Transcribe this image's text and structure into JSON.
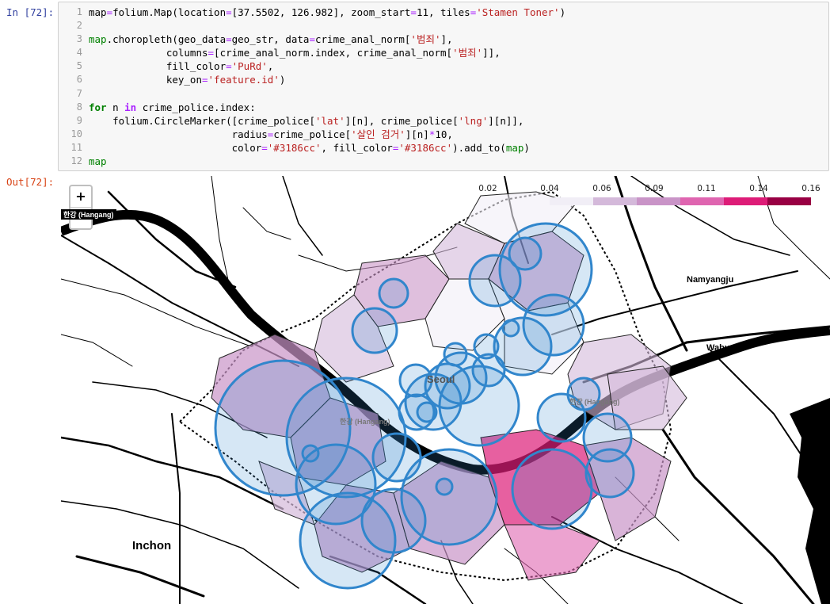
{
  "input_prompt": "In [72]:",
  "output_prompt": "Out[72]:",
  "code_lines": [
    {
      "n": "1",
      "segs": [
        [
          "map",
          ""
        ],
        [
          "=",
          "eq"
        ],
        [
          "folium.Map(location",
          ""
        ],
        [
          "=",
          "eq"
        ],
        [
          "[37.5502, 126.982], zoom_start",
          ""
        ],
        [
          "=",
          "eq"
        ],
        [
          "11, tiles",
          ""
        ],
        [
          "=",
          "eq"
        ],
        [
          "'Stamen Toner'",
          "st"
        ],
        [
          ")",
          ""
        ]
      ]
    },
    {
      "n": "2",
      "segs": []
    },
    {
      "n": "3",
      "segs": [
        [
          "map",
          "nm"
        ],
        [
          ".choropleth(geo_data",
          ""
        ],
        [
          "=",
          "eq"
        ],
        [
          "geo_str, data",
          ""
        ],
        [
          "=",
          "eq"
        ],
        [
          "crime_anal_norm[",
          ""
        ],
        [
          "'범죄'",
          "st"
        ],
        [
          "],",
          ""
        ]
      ]
    },
    {
      "n": "4",
      "segs": [
        [
          "             columns",
          ""
        ],
        [
          "=",
          "eq"
        ],
        [
          "[crime_anal_norm.index, crime_anal_norm[",
          ""
        ],
        [
          "'범죄'",
          "st"
        ],
        [
          "]],",
          ""
        ]
      ]
    },
    {
      "n": "5",
      "segs": [
        [
          "             fill_color",
          ""
        ],
        [
          "=",
          "eq"
        ],
        [
          "'PuRd'",
          "st"
        ],
        [
          ",",
          ""
        ]
      ]
    },
    {
      "n": "6",
      "segs": [
        [
          "             key_on",
          ""
        ],
        [
          "=",
          "eq"
        ],
        [
          "'feature.id'",
          "st"
        ],
        [
          ")",
          ""
        ]
      ]
    },
    {
      "n": "7",
      "segs": []
    },
    {
      "n": "8",
      "segs": [
        [
          "for",
          "kw"
        ],
        [
          " n ",
          ""
        ],
        [
          "in",
          "op"
        ],
        [
          " crime_police.index:",
          ""
        ]
      ]
    },
    {
      "n": "9",
      "segs": [
        [
          "    folium.CircleMarker([crime_police[",
          ""
        ],
        [
          "'lat'",
          "st"
        ],
        [
          "][n], crime_police[",
          ""
        ],
        [
          "'lng'",
          "st"
        ],
        [
          "][n]],",
          ""
        ]
      ]
    },
    {
      "n": "10",
      "segs": [
        [
          "                        radius",
          ""
        ],
        [
          "=",
          "eq"
        ],
        [
          "crime_police[",
          ""
        ],
        [
          "'살인 검거'",
          "st"
        ],
        [
          "][n]",
          ""
        ],
        [
          "*",
          "eq"
        ],
        [
          "10,",
          ""
        ]
      ]
    },
    {
      "n": "11",
      "segs": [
        [
          "                        color",
          ""
        ],
        [
          "=",
          "eq"
        ],
        [
          "'#3186cc'",
          "st"
        ],
        [
          ", fill_color",
          ""
        ],
        [
          "=",
          "eq"
        ],
        [
          "'#3186cc'",
          "st"
        ],
        [
          ").add_to(",
          ""
        ],
        [
          "map",
          "nm"
        ],
        [
          ")",
          ""
        ]
      ]
    },
    {
      "n": "12",
      "segs": [
        [
          "map",
          "nm"
        ]
      ]
    }
  ],
  "map": {
    "zoom_in_label": "+",
    "zoom_out_label": "−",
    "legend": {
      "ticks": [
        "0.02",
        "0.04",
        "0.06",
        "0.09",
        "0.11",
        "0.14",
        "0.16"
      ],
      "colors": [
        "#f1eef6",
        "#d4b9da",
        "#c994c7",
        "#df65b0",
        "#dd1c77",
        "#980043"
      ]
    },
    "places": {
      "seoul": "Seoul",
      "namyangju": "Namyangju",
      "wabu": "Wabu",
      "inchon": "Inchon",
      "hangang_west": "한강 (Hangang)",
      "hangang_center": "한강 (Hangang)",
      "hangang_east": "한강 (Hangang)"
    },
    "marker_color": "#3186cc"
  }
}
